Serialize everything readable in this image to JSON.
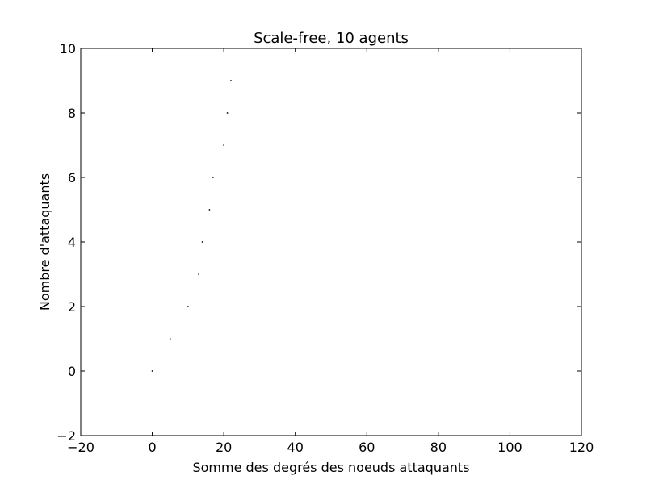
{
  "chart_data": {
    "type": "scatter",
    "title": "Scale-free, 10 agents",
    "xlabel": "Somme des degrés des noeuds attaquants",
    "ylabel": "Nombre d'attaquants",
    "xlim": [
      -20,
      120
    ],
    "ylim": [
      -2,
      10
    ],
    "xticks": [
      -20,
      0,
      20,
      40,
      60,
      80,
      100,
      120
    ],
    "yticks": [
      -2,
      0,
      2,
      4,
      6,
      8,
      10
    ],
    "xtick_labels": [
      "−20",
      "0",
      "20",
      "40",
      "60",
      "80",
      "100",
      "120"
    ],
    "ytick_labels": [
      "−2",
      "0",
      "2",
      "4",
      "6",
      "8",
      "10"
    ],
    "grid": false,
    "colors": {
      "points": "#000000",
      "axes": "#000000",
      "background": "#ffffff"
    },
    "points": [
      {
        "x": 0,
        "y": 0
      },
      {
        "x": 5,
        "y": 1
      },
      {
        "x": 10,
        "y": 2
      },
      {
        "x": 13,
        "y": 3
      },
      {
        "x": 14,
        "y": 4
      },
      {
        "x": 16,
        "y": 5
      },
      {
        "x": 17,
        "y": 6
      },
      {
        "x": 20,
        "y": 7
      },
      {
        "x": 21,
        "y": 8
      },
      {
        "x": 22,
        "y": 9
      }
    ]
  }
}
